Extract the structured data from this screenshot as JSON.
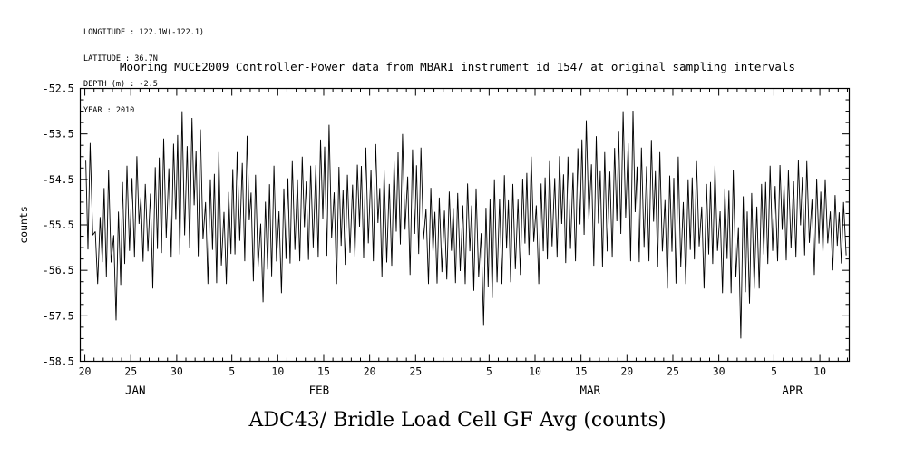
{
  "meta": {
    "lines": [
      "LONGITUDE : 122.1W(-122.1)",
      "LATITUDE : 36.7N",
      "DEPTH (m) : -2.5",
      "YEAR : 2010"
    ]
  },
  "title": "Mooring MUCE2009 Controller-Power data from MBARI instrument id 1547 at original sampling intervals",
  "bottom_title": "ADC43/ Bridle Load Cell GF Avg (counts)",
  "chart_data": {
    "type": "line",
    "title": "Mooring MUCE2009 Controller-Power data from MBARI instrument id 1547 at original sampling intervals",
    "ylabel": "counts",
    "ylim": [
      -58.5,
      -52.5
    ],
    "x_range_days": [
      -0.5,
      83.2
    ],
    "line_color": "#000000",
    "grid": false,
    "y_ticks": [
      {
        "value": -52.5,
        "label": "-52.5"
      },
      {
        "value": -53.5,
        "label": "-53.5"
      },
      {
        "value": -54.5,
        "label": "-54.5"
      },
      {
        "value": -55.5,
        "label": "-55.5"
      },
      {
        "value": -56.5,
        "label": "-56.5"
      },
      {
        "value": -57.5,
        "label": "-57.5"
      },
      {
        "value": -58.5,
        "label": "-58.5"
      }
    ],
    "y_minor_step": 0.25,
    "x_ticks": [
      {
        "day": 0,
        "label": "20"
      },
      {
        "day": 5,
        "label": "25"
      },
      {
        "day": 10,
        "label": "30"
      },
      {
        "day": 16,
        "label": "5"
      },
      {
        "day": 21,
        "label": "10"
      },
      {
        "day": 26,
        "label": "15"
      },
      {
        "day": 31,
        "label": "20"
      },
      {
        "day": 36,
        "label": "25"
      },
      {
        "day": 44,
        "label": "5"
      },
      {
        "day": 49,
        "label": "10"
      },
      {
        "day": 54,
        "label": "15"
      },
      {
        "day": 59,
        "label": "20"
      },
      {
        "day": 64,
        "label": "25"
      },
      {
        "day": 69,
        "label": "30"
      },
      {
        "day": 75,
        "label": "5"
      },
      {
        "day": 80,
        "label": "10"
      }
    ],
    "x_minor_days": [
      0,
      83
    ],
    "x_minor_step": 1,
    "months": [
      {
        "label": "JAN",
        "day": 5.5
      },
      {
        "label": "FEB",
        "day": 25.5
      },
      {
        "label": "MAR",
        "day": 55.0
      },
      {
        "label": "APR",
        "day": 77.0
      }
    ],
    "series": {
      "name": "ADC43/ Bridle Load Cell GF Avg",
      "units": "counts",
      "day0_tick_label": "20",
      "daily_peaks": [
        -53.7,
        -55.2,
        -54.3,
        -55.0,
        -54.2,
        -53.8,
        -54.6,
        -54.0,
        -53.6,
        -53.5,
        -53.0,
        -52.9,
        -53.4,
        -54.3,
        -53.9,
        -54.6,
        -53.9,
        -53.3,
        -54.4,
        -54.8,
        -54.2,
        -54.5,
        -54.1,
        -53.8,
        -54.2,
        -53.4,
        -53.3,
        -54.0,
        -54.4,
        -54.0,
        -53.8,
        -53.5,
        -54.3,
        -53.9,
        -53.5,
        -53.6,
        -53.8,
        -54.5,
        -54.9,
        -54.6,
        -54.8,
        -54.4,
        -54.7,
        -54.9,
        -54.5,
        -54.2,
        -54.6,
        -54.3,
        -54.0,
        -54.4,
        -54.1,
        -53.8,
        -54.0,
        -53.6,
        -53.2,
        -53.3,
        -53.9,
        -53.6,
        -53.0,
        -52.7,
        -53.8,
        -53.4,
        -53.9,
        -54.2,
        -54.0,
        -54.3,
        -54.1,
        -54.4,
        -54.2,
        -54.5,
        -54.3,
        -54.6,
        -54.8,
        -54.4,
        -54.2,
        -54.0,
        -54.3,
        -53.9,
        -54.1,
        -54.3,
        -54.5,
        -54.7,
        -55.0
      ],
      "daily_troughs": [
        -56.3,
        -56.8,
        -56.9,
        -57.6,
        -56.6,
        -56.2,
        -56.5,
        -56.9,
        -56.4,
        -56.2,
        -56.5,
        -56.0,
        -56.5,
        -56.8,
        -57.1,
        -56.8,
        -56.4,
        -56.3,
        -57.0,
        -57.2,
        -56.9,
        -57.0,
        -56.6,
        -56.3,
        -56.5,
        -56.2,
        -56.5,
        -56.8,
        -56.6,
        -56.2,
        -56.5,
        -56.3,
        -56.9,
        -56.4,
        -56.2,
        -56.6,
        -56.4,
        -56.8,
        -57.0,
        -56.7,
        -57.0,
        -56.8,
        -57.2,
        -57.7,
        -57.4,
        -56.8,
        -57.0,
        -56.6,
        -56.4,
        -56.8,
        -56.5,
        -56.2,
        -56.6,
        -56.3,
        -56.0,
        -56.4,
        -56.7,
        -56.2,
        -56.0,
        -56.3,
        -56.6,
        -56.3,
        -56.7,
        -56.9,
        -57.1,
        -56.8,
        -56.5,
        -56.9,
        -56.6,
        -57.0,
        -57.3,
        -58.0,
        -57.5,
        -56.9,
        -56.6,
        -56.3,
        -56.5,
        -56.2,
        -56.4,
        -56.6,
        -56.3,
        -56.5,
        -56.5
      ]
    },
    "waveform": {
      "even": {
        "fr": [
          0.1,
          0.34,
          0.58,
          0.86
        ],
        "bl": [
          0.85,
          0.1,
          1.0,
          0.22
        ]
      },
      "odd": {
        "fr": [
          0.14,
          0.4,
          0.66,
          0.9
        ],
        "bl": [
          0.72,
          0.0,
          0.92,
          0.3
        ]
      }
    }
  }
}
